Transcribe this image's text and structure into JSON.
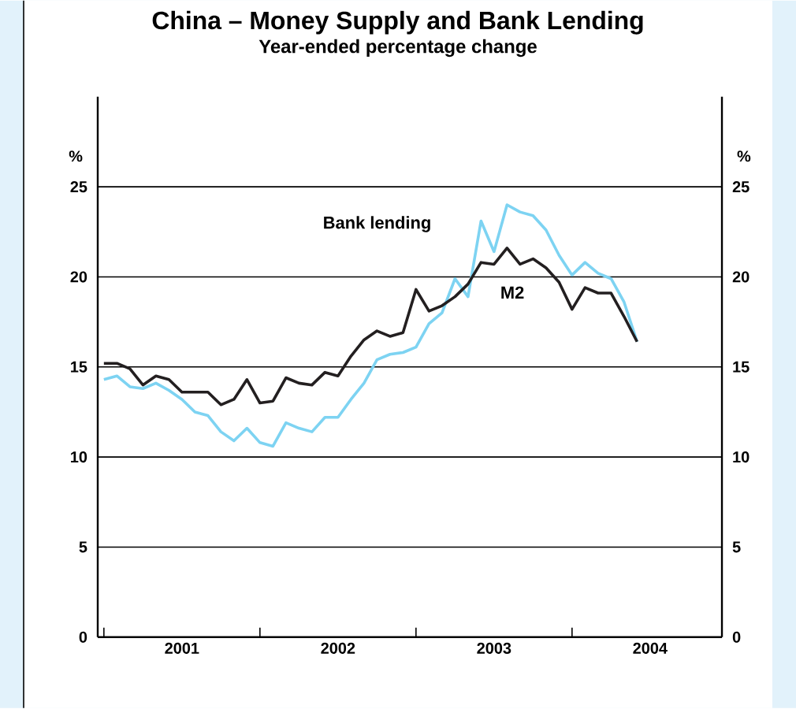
{
  "chart_data": {
    "type": "line",
    "title": "China – Money Supply and Bank Lending",
    "subtitle": "Year-ended percentage change",
    "ylabel": "%",
    "y2label": "%",
    "x": [
      "2001-01",
      "2001-02",
      "2001-03",
      "2001-04",
      "2001-05",
      "2001-06",
      "2001-07",
      "2001-08",
      "2001-09",
      "2001-10",
      "2001-11",
      "2001-12",
      "2002-01",
      "2002-02",
      "2002-03",
      "2002-04",
      "2002-05",
      "2002-06",
      "2002-07",
      "2002-08",
      "2002-09",
      "2002-10",
      "2002-11",
      "2002-12",
      "2003-01",
      "2003-02",
      "2003-03",
      "2003-04",
      "2003-05",
      "2003-06",
      "2003-07",
      "2003-08",
      "2003-09",
      "2003-10",
      "2003-11",
      "2003-12",
      "2004-01",
      "2004-02",
      "2004-03",
      "2004-04",
      "2004-05",
      "2004-06"
    ],
    "series": [
      {
        "name": "Bank lending",
        "color": "#7dd3f2",
        "values": [
          14.3,
          14.5,
          13.9,
          13.8,
          14.1,
          13.7,
          13.2,
          12.5,
          12.3,
          11.4,
          10.9,
          11.6,
          10.8,
          10.6,
          11.9,
          11.6,
          11.4,
          12.2,
          12.2,
          13.2,
          14.1,
          15.4,
          15.7,
          15.8,
          16.1,
          17.4,
          18.0,
          19.9,
          18.9,
          23.1,
          21.4,
          24.0,
          23.6,
          23.4,
          22.6,
          21.2,
          20.1,
          20.8,
          20.2,
          19.9,
          18.6,
          16.4
        ]
      },
      {
        "name": "M2",
        "color": "#231f20",
        "values": [
          15.2,
          15.2,
          14.9,
          14.0,
          14.5,
          14.3,
          13.6,
          13.6,
          13.6,
          12.9,
          13.2,
          14.3,
          13.0,
          13.1,
          14.4,
          14.1,
          14.0,
          14.7,
          14.5,
          15.6,
          16.5,
          17.0,
          16.7,
          16.9,
          19.3,
          18.1,
          18.4,
          18.9,
          19.6,
          20.8,
          20.7,
          21.6,
          20.7,
          21.0,
          20.5,
          19.7,
          18.2,
          19.4,
          19.1,
          19.1,
          17.8,
          16.4
        ]
      }
    ],
    "xlim": [
      "2000-12-17",
      "2004-12-17"
    ],
    "xticks": [
      {
        "value": "2001-01-01",
        "label": null
      },
      {
        "value": "2001-07-01",
        "label": "2001"
      },
      {
        "value": "2002-01-01",
        "label": null
      },
      {
        "value": "2002-07-01",
        "label": "2002"
      },
      {
        "value": "2003-01-01",
        "label": null
      },
      {
        "value": "2003-07-01",
        "label": "2003"
      },
      {
        "value": "2004-01-01",
        "label": null
      },
      {
        "value": "2004-07-01",
        "label": "2004"
      }
    ],
    "ylim": [
      0,
      30
    ],
    "yticks": [
      0,
      5,
      10,
      15,
      20,
      25
    ],
    "y2lim": [
      0,
      30
    ],
    "y2ticks": [
      0,
      5,
      10,
      15,
      20,
      25
    ],
    "grid": "y"
  }
}
